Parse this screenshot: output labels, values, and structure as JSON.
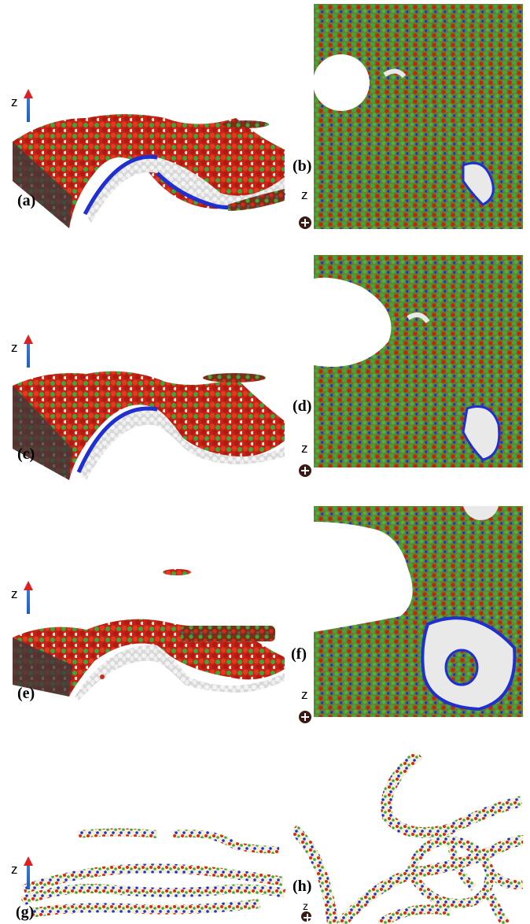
{
  "figure": {
    "labels": {
      "a": "(a)",
      "b": "(b)",
      "c": "(c)",
      "d": "(d)",
      "e": "(e)",
      "f": "(f)",
      "g": "(g)",
      "h": "(h)"
    },
    "axis_label": "z",
    "colors": {
      "red_bead": "#d42a16",
      "green_bead": "#3fa63a",
      "blue_bead": "#1f2fd0",
      "white_bead": "#e9e9e9",
      "tube_fill": "#f4efd6"
    }
  }
}
